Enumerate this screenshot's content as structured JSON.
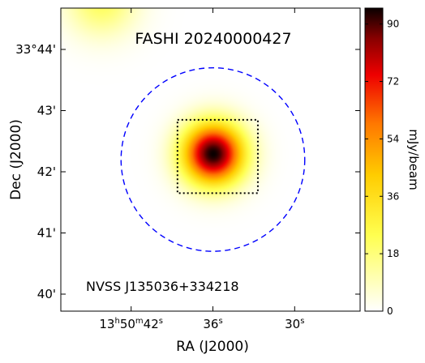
{
  "chart_data": {
    "type": "heatmap",
    "title": "FASHI 20240000427",
    "source_label": "NVSS J135036+334218",
    "xlabel": "RA (J2000)",
    "ylabel": "Dec (J2000)",
    "colorbar_label": "mJy/beam",
    "colormap": "hot_r",
    "value_range": [
      0,
      95
    ],
    "x_ticks": [
      {
        "ra_sec": 42,
        "label": "13h50m42s"
      },
      {
        "ra_sec": 36,
        "label": "36s"
      },
      {
        "ra_sec": 30,
        "label": "30s"
      }
    ],
    "y_ticks": [
      {
        "dec_arcmin": 40,
        "label": "40'"
      },
      {
        "dec_arcmin": 41,
        "label": "41'"
      },
      {
        "dec_arcmin": 42,
        "label": "42'"
      },
      {
        "dec_arcmin": 43,
        "label": "43'"
      },
      {
        "dec_arcmin": 44,
        "label": "33°44'"
      }
    ],
    "colorbar_ticks": [
      0,
      18,
      36,
      54,
      72,
      90
    ],
    "sources": [
      {
        "ra_sec": 36.0,
        "dec_arcmin": 42.3,
        "peak": 95,
        "sigma_arcmin": 0.35
      },
      {
        "ra_sec": 44.2,
        "dec_arcmin": 44.8,
        "peak": 22,
        "sigma_arcmin": 0.4
      }
    ],
    "beam_circle": {
      "ra_sec": 36.0,
      "dec_arcmin": 42.2,
      "radius_arcmin": 1.5,
      "color": "#0000ff",
      "style": "dashed"
    },
    "box": {
      "ra_range": [
        38.6,
        32.7
      ],
      "dec_range": [
        41.65,
        42.85
      ],
      "color": "#000000",
      "style": "dotted"
    }
  }
}
